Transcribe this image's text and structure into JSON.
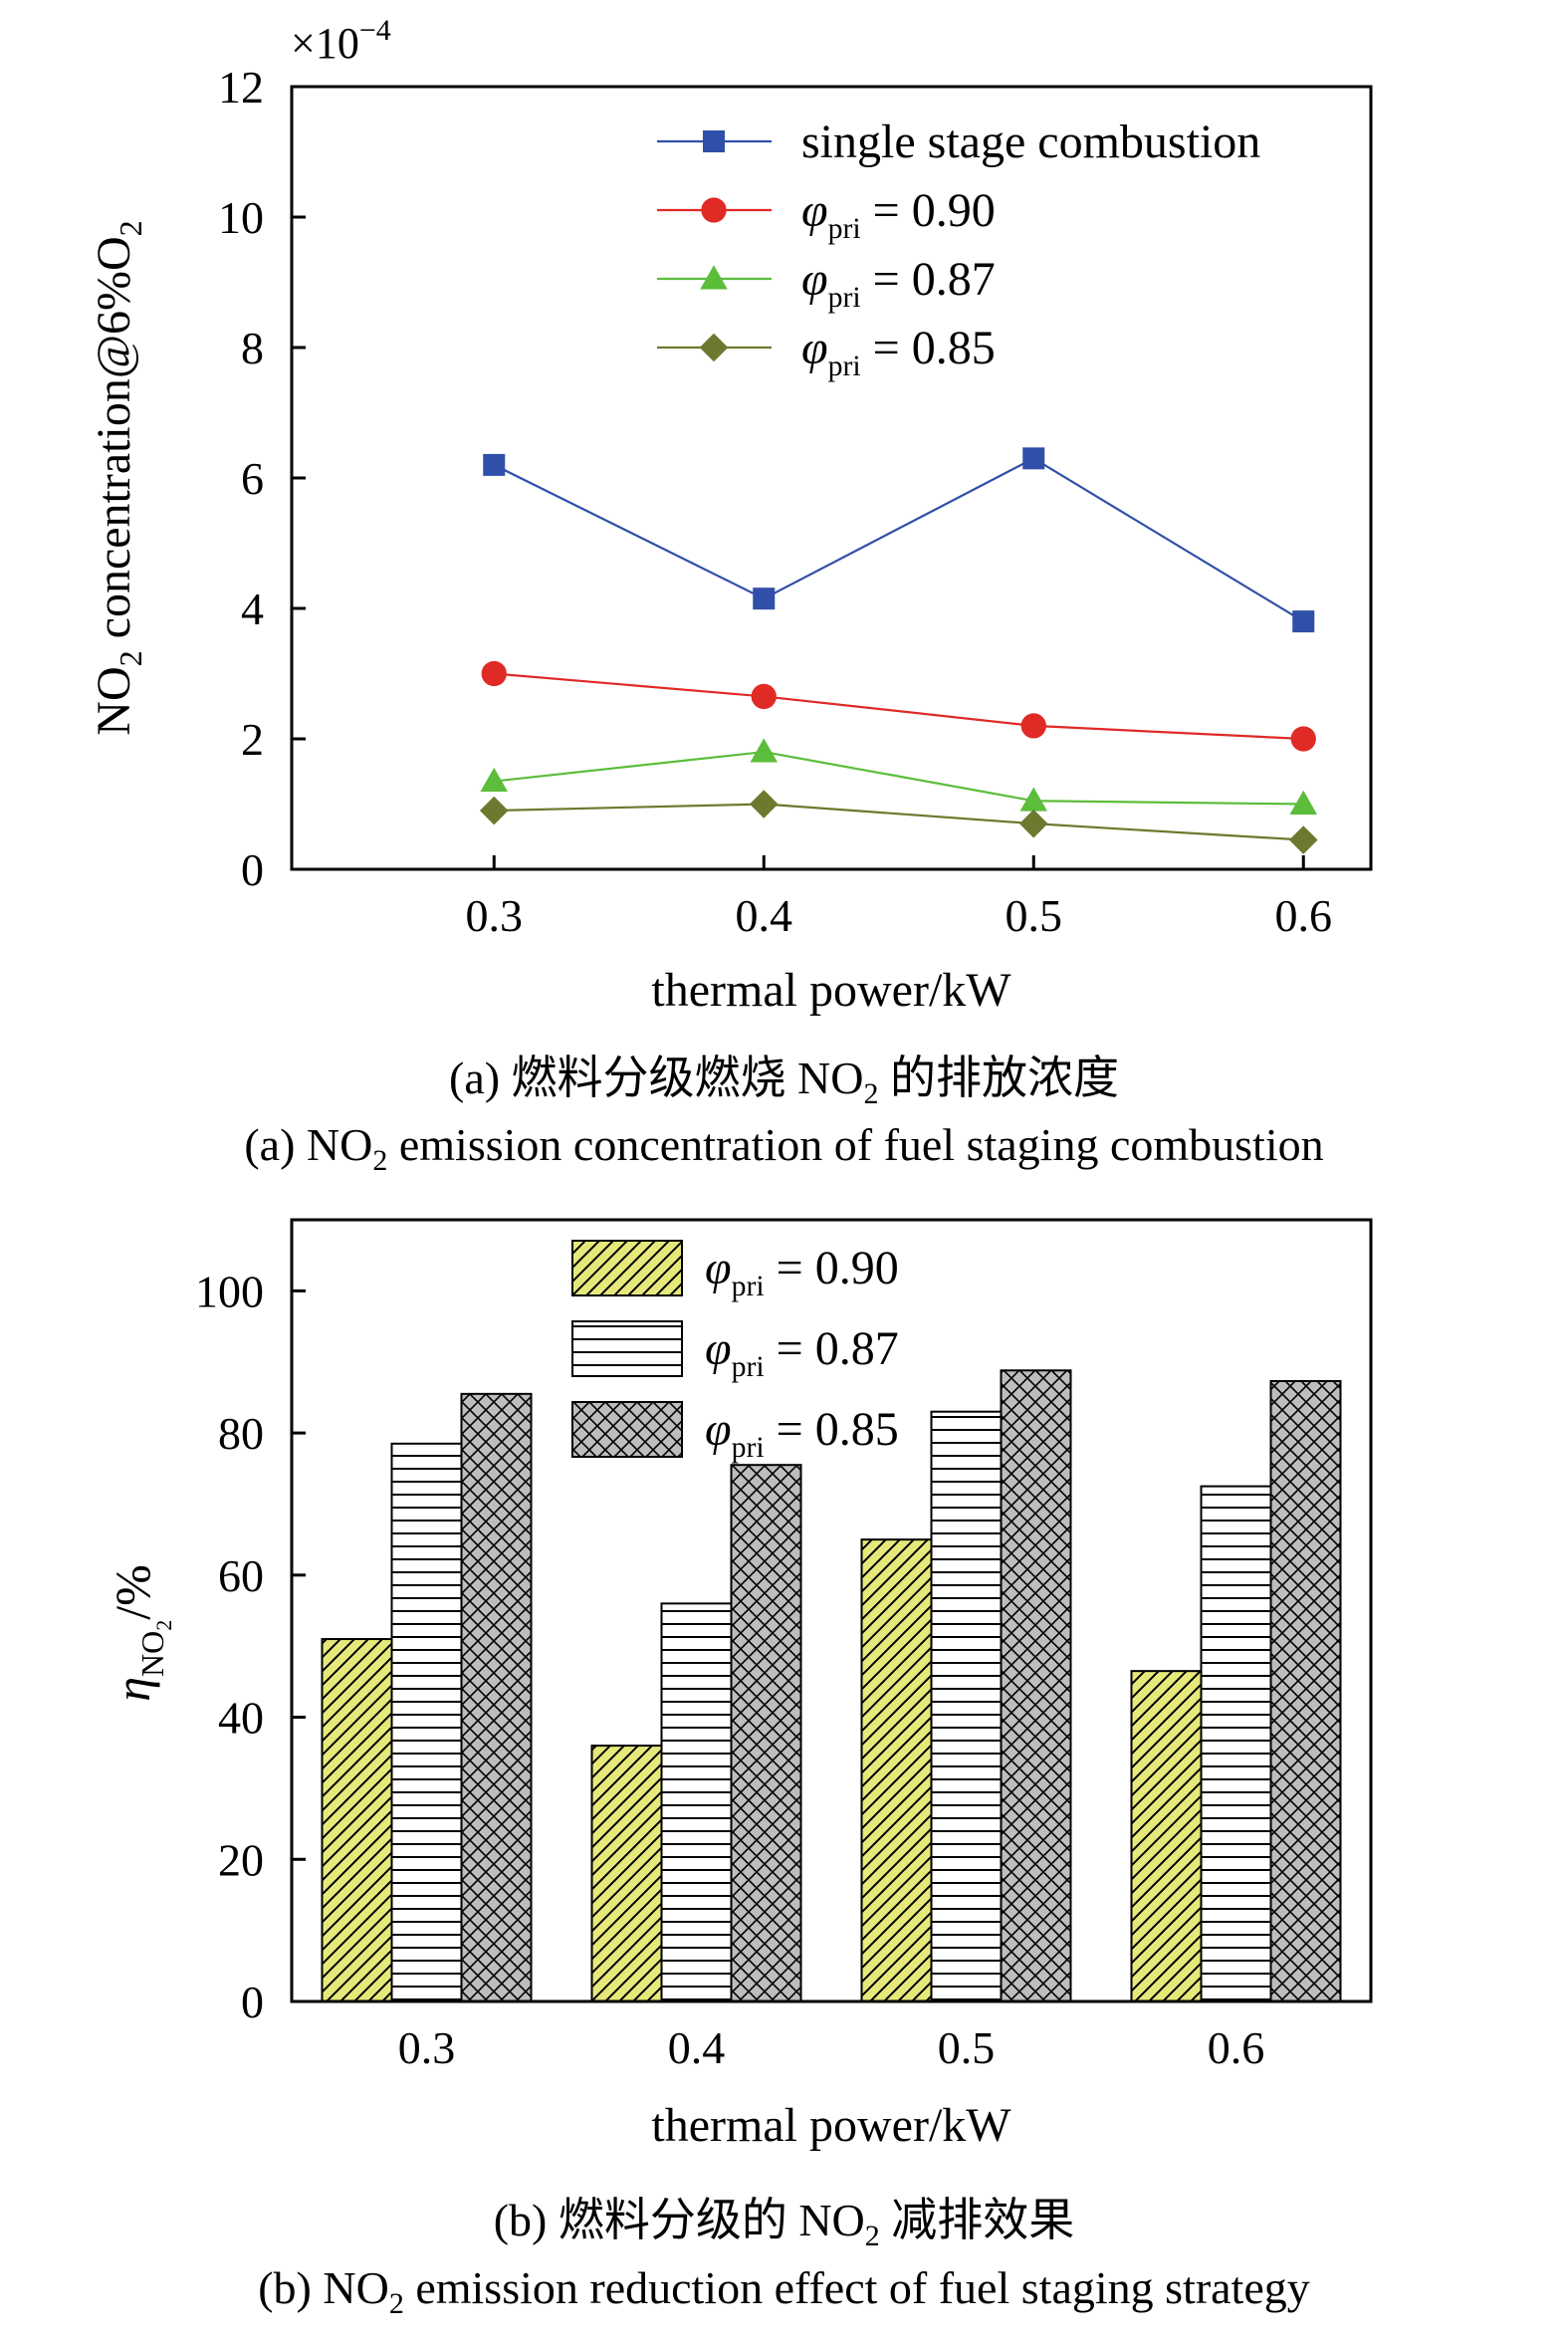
{
  "chart_data": [
    {
      "type": "line",
      "panel": "a",
      "scale_label": "×10",
      "scale_exponent": "−4",
      "ylabel_main": "NO",
      "ylabel_sub": "2",
      "ylabel_rest": " concentration@6%O",
      "ylabel_sub2": "2",
      "xlabel": "thermal power/kW",
      "ylim": [
        0,
        12
      ],
      "yticks": [
        "0",
        "2",
        "4",
        "6",
        "8",
        "10",
        "12"
      ],
      "x": [
        0.3,
        0.4,
        0.5,
        0.6
      ],
      "xticks": [
        "0.3",
        "0.4",
        "0.5",
        "0.6"
      ],
      "xlim": [
        0.225,
        0.625
      ],
      "legend_position": "top-right",
      "series": [
        {
          "name": "single stage combustion",
          "marker": "square",
          "color": "#2f4fa8",
          "values": [
            6.2,
            4.15,
            6.3,
            3.8
          ]
        },
        {
          "name_symbol": "φ",
          "name_sub": "pri",
          "name_rest": " = 0.90",
          "marker": "circle",
          "color": "#e02a26",
          "values": [
            3.0,
            2.65,
            2.2,
            2.0
          ]
        },
        {
          "name_symbol": "φ",
          "name_sub": "pri",
          "name_rest": " = 0.87",
          "marker": "triangle",
          "color": "#5bbd3a",
          "values": [
            1.35,
            1.8,
            1.05,
            1.0
          ]
        },
        {
          "name_symbol": "φ",
          "name_sub": "pri",
          "name_rest": " = 0.85",
          "marker": "diamond",
          "color": "#6b7a2e",
          "values": [
            0.9,
            1.0,
            0.7,
            0.45
          ]
        }
      ]
    },
    {
      "type": "bar",
      "panel": "b",
      "ylabel_symbol": "η",
      "ylabel_sub": "NO",
      "ylabel_subsub": "2",
      "ylabel_rest": "/%",
      "xlabel": "thermal power/kW",
      "ylim": [
        0,
        110
      ],
      "yticks": [
        "0",
        "20",
        "40",
        "60",
        "80",
        "100"
      ],
      "categories": [
        "0.3",
        "0.4",
        "0.5",
        "0.6"
      ],
      "legend_position": "top-left",
      "series": [
        {
          "name_symbol": "φ",
          "name_sub": "pri",
          "name_rest": " = 0.90",
          "pattern": "diagonal",
          "fill": "#e6e87a",
          "values": [
            51,
            36,
            65,
            46.5
          ]
        },
        {
          "name_symbol": "φ",
          "name_sub": "pri",
          "name_rest": " = 0.87",
          "pattern": "horizontal",
          "fill": "#ffffff",
          "values": [
            78.5,
            56,
            83,
            72.5
          ]
        },
        {
          "name_symbol": "φ",
          "name_sub": "pri",
          "name_rest": " = 0.85",
          "pattern": "crosshatch",
          "fill": "#bdbdbd",
          "values": [
            85.5,
            75.5,
            88.8,
            87.3
          ]
        }
      ]
    }
  ],
  "captions": {
    "a_cn_prefix": "(a) 燃料分级燃烧 NO",
    "a_cn_sub": "2",
    "a_cn_suffix": " 的排放浓度",
    "a_en_prefix": "(a) NO",
    "a_en_sub": "2",
    "a_en_suffix": " emission concentration of fuel staging combustion",
    "b_cn_prefix": "(b) 燃料分级的 NO",
    "b_cn_sub": "2",
    "b_cn_suffix": " 减排效果",
    "b_en_prefix": "(b) NO",
    "b_en_sub": "2",
    "b_en_suffix": " emission reduction effect of fuel staging strategy"
  }
}
